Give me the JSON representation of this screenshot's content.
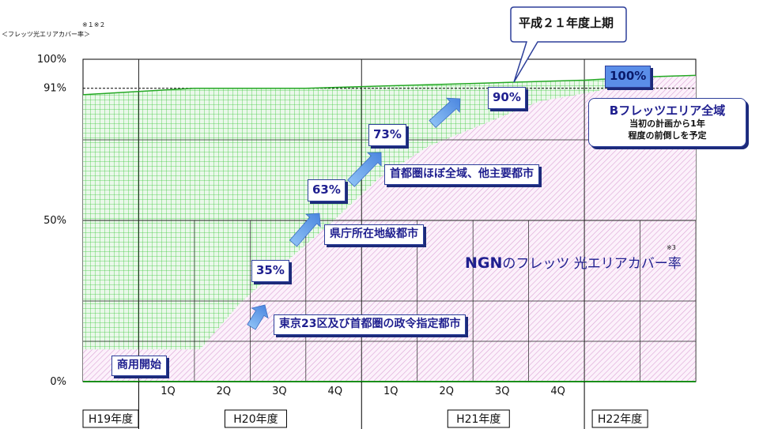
{
  "chart_data": {
    "type": "area",
    "yaxis_title": "＜フレッツ光エリアカバー率＞",
    "yaxis_note": "※１※２",
    "yticks": [
      "100%",
      "91%",
      "50%",
      "0%"
    ],
    "ytick_values": [
      100,
      91,
      50,
      0
    ],
    "ylim": [
      0,
      100
    ],
    "quarters": [
      "1Q",
      "2Q",
      "3Q",
      "4Q",
      "1Q",
      "2Q",
      "3Q",
      "4Q"
    ],
    "fiscal_years": [
      "H19年度",
      "H20年度",
      "H21年度",
      "H22年度"
    ],
    "x_timeline": [
      0,
      1,
      2,
      3,
      4,
      5,
      6,
      7,
      8,
      9,
      10,
      11
    ],
    "series": [
      {
        "name": "フレッツ光エリアカバー率",
        "points": [
          [
            0,
            89
          ],
          [
            1,
            90
          ],
          [
            2,
            91
          ],
          [
            3,
            91
          ],
          [
            4,
            91
          ],
          [
            5,
            91.5
          ],
          [
            6,
            92
          ],
          [
            7,
            92.5
          ],
          [
            8,
            93
          ],
          [
            9,
            93.5
          ],
          [
            10,
            94.5
          ],
          [
            11,
            95
          ]
        ]
      },
      {
        "name": "NGNのフレッツ光エリアカバー率",
        "points": [
          [
            0,
            10
          ],
          [
            1,
            10
          ],
          [
            2,
            10
          ],
          [
            2.1,
            10
          ],
          [
            2.8,
            24
          ],
          [
            3.5,
            35
          ],
          [
            4.5,
            50
          ],
          [
            5.3,
            63
          ],
          [
            6.2,
            73
          ],
          [
            7.2,
            80
          ],
          [
            8.2,
            87
          ],
          [
            9.2,
            90
          ],
          [
            10,
            94
          ],
          [
            11,
            95
          ]
        ]
      }
    ],
    "milestones": [
      {
        "label": "商用開始"
      },
      {
        "label": "東京23区及び首都圏の政令指定都市",
        "value": "35%"
      },
      {
        "label": "県庁所在地級都市",
        "value": "63%"
      },
      {
        "label": "首都圏ほぼ全域、他主要都市",
        "value": "73%"
      },
      {
        "value": "90%"
      },
      {
        "value": "100%"
      }
    ],
    "callout": "平成２１年度上期",
    "bflets": {
      "title": "Bフレッツエリア全域",
      "line1": "当初の計画から1年",
      "line2": "程度の前倒しを予定"
    },
    "ngn_label_bold": "NGN",
    "ngn_label_rest": "のフレッツ 光エリアカバー率",
    "ngn_note": "※3",
    "colors": {
      "flets_fill": "#eaf8ea",
      "flets_grid": "#2bc42b",
      "flets_line": "#24a824",
      "ngn_fill": "#fbeefb",
      "ngn_hatch": "#d9a0d3",
      "box_border": "#2d3f9a",
      "box_text": "#1f1f8f",
      "arrow": "#6fa8ee"
    }
  }
}
